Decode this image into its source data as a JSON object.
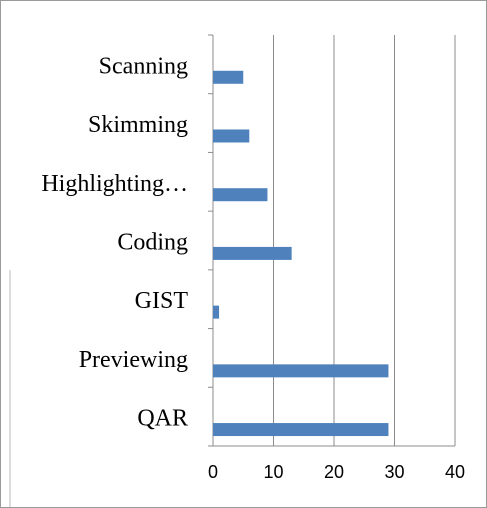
{
  "chart_data": {
    "type": "bar",
    "orientation": "horizontal",
    "categories": [
      "Scanning",
      "Skimming",
      "Highlighting…",
      "Coding",
      "GIST",
      "Previewing",
      "QAR"
    ],
    "values": [
      5,
      6,
      9,
      13,
      1,
      29,
      29
    ],
    "color": "#4f81bd",
    "xlim": [
      0,
      40
    ],
    "xticks": [
      0,
      10,
      20,
      30,
      40
    ],
    "grid": true
  }
}
